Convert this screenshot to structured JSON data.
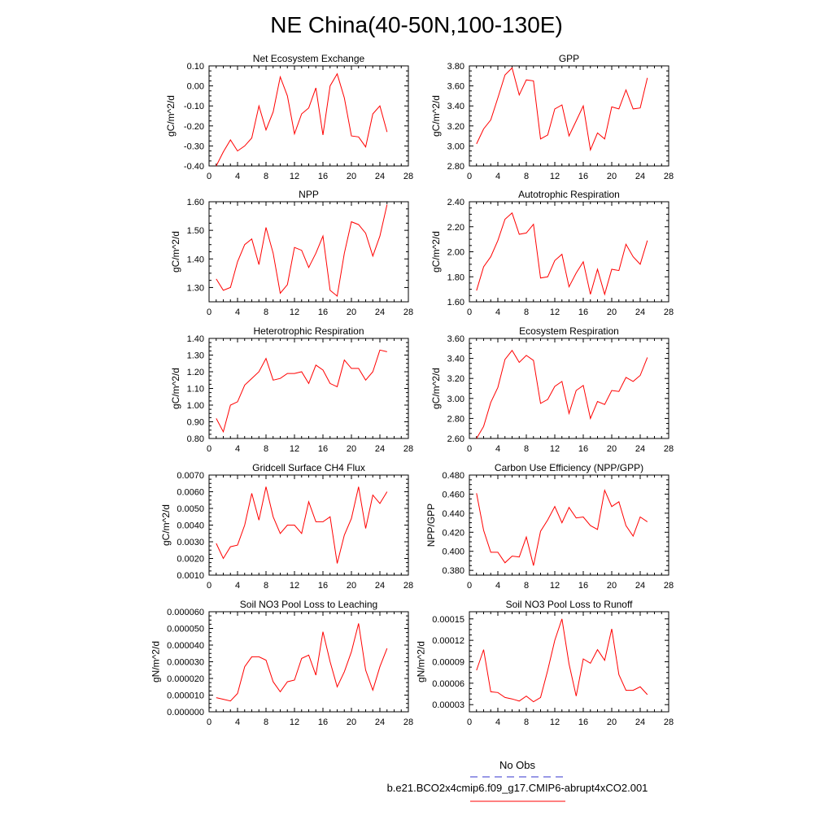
{
  "title": "NE China(40-50N,100-130E)",
  "colors": {
    "series_line": "#ff0000",
    "obs_line": "#3333cc",
    "axis": "#000000"
  },
  "legend": {
    "entries": [
      {
        "label": "No Obs",
        "style": "dashed",
        "color": "#3333cc"
      },
      {
        "label": "b.e21.BCO2x4cmip6.f09_g17.CMIP6-abrupt4xCO2.001",
        "style": "solid",
        "color": "#ff0000"
      }
    ]
  },
  "chart_data": [
    {
      "type": "line",
      "title": "Net Ecosystem Exchange",
      "ylabel": "gC/m^2/d",
      "xlim": [
        0,
        28
      ],
      "xticks": [
        "0",
        "4",
        "8",
        "12",
        "16",
        "20",
        "24",
        "28"
      ],
      "ylim": [
        -0.4,
        0.1
      ],
      "yticks": [
        "-0.40",
        "-0.30",
        "-0.20",
        "-0.10",
        "0.00",
        "0.10"
      ],
      "x": [
        1,
        2,
        3,
        4,
        5,
        6,
        7,
        8,
        9,
        10,
        11,
        12,
        13,
        14,
        15,
        16,
        17,
        18,
        19,
        20,
        21,
        22,
        23,
        24,
        25
      ],
      "values": [
        -0.4,
        -0.33,
        -0.27,
        -0.325,
        -0.3,
        -0.26,
        -0.1,
        -0.22,
        -0.13,
        0.045,
        -0.05,
        -0.24,
        -0.14,
        -0.11,
        -0.01,
        -0.245,
        0.0,
        0.06,
        -0.06,
        -0.25,
        -0.255,
        -0.305,
        -0.14,
        -0.1,
        -0.23
      ]
    },
    {
      "type": "line",
      "title": "GPP",
      "ylabel": "gC/m^2/d",
      "xlim": [
        0,
        28
      ],
      "xticks": [
        "0",
        "4",
        "8",
        "12",
        "16",
        "20",
        "24",
        "28"
      ],
      "ylim": [
        2.8,
        3.8
      ],
      "yticks": [
        "2.80",
        "3.00",
        "3.20",
        "3.40",
        "3.60",
        "3.80"
      ],
      "x": [
        1,
        2,
        3,
        4,
        5,
        6,
        7,
        8,
        9,
        10,
        11,
        12,
        13,
        14,
        15,
        16,
        17,
        18,
        19,
        20,
        21,
        22,
        23,
        24,
        25
      ],
      "values": [
        3.02,
        3.17,
        3.26,
        3.48,
        3.71,
        3.78,
        3.51,
        3.66,
        3.65,
        3.07,
        3.11,
        3.37,
        3.41,
        3.1,
        3.25,
        3.4,
        2.96,
        3.13,
        3.07,
        3.39,
        3.37,
        3.56,
        3.37,
        3.38,
        3.68
      ]
    },
    {
      "type": "line",
      "title": "NPP",
      "ylabel": "gC/m^2/d",
      "xlim": [
        0,
        28
      ],
      "xticks": [
        "0",
        "4",
        "8",
        "12",
        "16",
        "20",
        "24",
        "28"
      ],
      "ylim": [
        1.25,
        1.6
      ],
      "yticks": [
        "1.30",
        "1.40",
        "1.50",
        "1.60"
      ],
      "x": [
        1,
        2,
        3,
        4,
        5,
        6,
        7,
        8,
        9,
        10,
        11,
        12,
        13,
        14,
        15,
        16,
        17,
        18,
        19,
        20,
        21,
        22,
        23,
        24,
        25
      ],
      "values": [
        1.33,
        1.29,
        1.3,
        1.39,
        1.45,
        1.47,
        1.38,
        1.51,
        1.42,
        1.28,
        1.31,
        1.44,
        1.43,
        1.37,
        1.42,
        1.48,
        1.29,
        1.27,
        1.42,
        1.53,
        1.52,
        1.49,
        1.41,
        1.48,
        1.59
      ]
    },
    {
      "type": "line",
      "title": "Autotrophic Respiration",
      "ylabel": "gC/m^2/d",
      "xlim": [
        0,
        28
      ],
      "xticks": [
        "0",
        "4",
        "8",
        "12",
        "16",
        "20",
        "24",
        "28"
      ],
      "ylim": [
        1.6,
        2.4
      ],
      "yticks": [
        "1.60",
        "1.80",
        "2.00",
        "2.20",
        "2.40"
      ],
      "x": [
        1,
        2,
        3,
        4,
        5,
        6,
        7,
        8,
        9,
        10,
        11,
        12,
        13,
        14,
        15,
        16,
        17,
        18,
        19,
        20,
        21,
        22,
        23,
        24,
        25
      ],
      "values": [
        1.69,
        1.88,
        1.96,
        2.09,
        2.26,
        2.31,
        2.14,
        2.15,
        2.22,
        1.79,
        1.8,
        1.93,
        1.98,
        1.72,
        1.83,
        1.92,
        1.66,
        1.86,
        1.66,
        1.86,
        1.85,
        2.06,
        1.96,
        1.9,
        2.09
      ]
    },
    {
      "type": "line",
      "title": "Heterotrophic Respiration",
      "ylabel": "gC/m^2/d",
      "xlim": [
        0,
        28
      ],
      "xticks": [
        "0",
        "4",
        "8",
        "12",
        "16",
        "20",
        "24",
        "28"
      ],
      "ylim": [
        0.8,
        1.4
      ],
      "yticks": [
        "0.80",
        "0.90",
        "1.00",
        "1.10",
        "1.20",
        "1.30",
        "1.40"
      ],
      "x": [
        1,
        2,
        3,
        4,
        5,
        6,
        7,
        8,
        9,
        10,
        11,
        12,
        13,
        14,
        15,
        16,
        17,
        18,
        19,
        20,
        21,
        22,
        23,
        24,
        25
      ],
      "values": [
        0.92,
        0.84,
        1.0,
        1.02,
        1.12,
        1.16,
        1.2,
        1.28,
        1.15,
        1.16,
        1.19,
        1.19,
        1.2,
        1.13,
        1.24,
        1.21,
        1.13,
        1.11,
        1.27,
        1.22,
        1.22,
        1.15,
        1.2,
        1.33,
        1.32
      ]
    },
    {
      "type": "line",
      "title": "Ecosystem Respiration",
      "ylabel": "gC/m^2/d",
      "xlim": [
        0,
        28
      ],
      "xticks": [
        "0",
        "4",
        "8",
        "12",
        "16",
        "20",
        "24",
        "28"
      ],
      "ylim": [
        2.6,
        3.6
      ],
      "yticks": [
        "2.60",
        "2.80",
        "3.00",
        "3.20",
        "3.40",
        "3.60"
      ],
      "x": [
        1,
        2,
        3,
        4,
        5,
        6,
        7,
        8,
        9,
        10,
        11,
        12,
        13,
        14,
        15,
        16,
        17,
        18,
        19,
        20,
        21,
        22,
        23,
        24,
        25
      ],
      "values": [
        2.6,
        2.72,
        2.96,
        3.11,
        3.39,
        3.48,
        3.36,
        3.43,
        3.38,
        2.95,
        2.99,
        3.12,
        3.17,
        2.85,
        3.08,
        3.13,
        2.8,
        2.97,
        2.94,
        3.08,
        3.07,
        3.21,
        3.17,
        3.23,
        3.41
      ]
    },
    {
      "type": "line",
      "title": "Gridcell Surface CH4 Flux",
      "ylabel": "gC/m^2/d",
      "xlim": [
        0,
        28
      ],
      "xticks": [
        "0",
        "4",
        "8",
        "12",
        "16",
        "20",
        "24",
        "28"
      ],
      "ylim": [
        0.001,
        0.007
      ],
      "yticks": [
        "0.0010",
        "0.0020",
        "0.0030",
        "0.0040",
        "0.0050",
        "0.0060",
        "0.0070"
      ],
      "x": [
        1,
        2,
        3,
        4,
        5,
        6,
        7,
        8,
        9,
        10,
        11,
        12,
        13,
        14,
        15,
        16,
        17,
        18,
        19,
        20,
        21,
        22,
        23,
        24,
        25
      ],
      "values": [
        0.0029,
        0.002,
        0.0027,
        0.0028,
        0.004,
        0.0059,
        0.0043,
        0.0063,
        0.0045,
        0.0035,
        0.004,
        0.004,
        0.0035,
        0.0054,
        0.0042,
        0.0042,
        0.0045,
        0.0017,
        0.0034,
        0.0044,
        0.0063,
        0.0038,
        0.0058,
        0.0053,
        0.006
      ]
    },
    {
      "type": "line",
      "title": "Carbon Use Efficiency (NPP/GPP)",
      "ylabel": "NPP/GPP",
      "xlim": [
        0,
        28
      ],
      "xticks": [
        "0",
        "4",
        "8",
        "12",
        "16",
        "20",
        "24",
        "28"
      ],
      "ylim": [
        0.375,
        0.48
      ],
      "yticks": [
        "0.380",
        "0.400",
        "0.420",
        "0.440",
        "0.460",
        "0.480"
      ],
      "x": [
        1,
        2,
        3,
        4,
        5,
        6,
        7,
        8,
        9,
        10,
        11,
        12,
        13,
        14,
        15,
        16,
        17,
        18,
        19,
        20,
        21,
        22,
        23,
        24,
        25
      ],
      "values": [
        0.461,
        0.422,
        0.399,
        0.399,
        0.388,
        0.395,
        0.394,
        0.415,
        0.385,
        0.421,
        0.433,
        0.447,
        0.43,
        0.446,
        0.435,
        0.436,
        0.427,
        0.423,
        0.464,
        0.447,
        0.452,
        0.427,
        0.416,
        0.436,
        0.431
      ]
    },
    {
      "type": "line",
      "title": "Soil NO3 Pool Loss to Leaching",
      "ylabel": "gN/m^2/d",
      "xlim": [
        0,
        28
      ],
      "xticks": [
        "0",
        "4",
        "8",
        "12",
        "16",
        "20",
        "24",
        "28"
      ],
      "ylim": [
        0,
        6e-05
      ],
      "yticks": [
        "0.000000",
        "0.000010",
        "0.000020",
        "0.000030",
        "0.000040",
        "0.000050",
        "0.000060"
      ],
      "x": [
        1,
        2,
        3,
        4,
        5,
        6,
        7,
        8,
        9,
        10,
        11,
        12,
        13,
        14,
        15,
        16,
        17,
        18,
        19,
        20,
        21,
        22,
        23,
        24,
        25
      ],
      "values": [
        8.5e-06,
        7.5e-06,
        6.5e-06,
        1.1e-05,
        2.7e-05,
        3.3e-05,
        3.3e-05,
        3.1e-05,
        1.8e-05,
        1.2e-05,
        1.8e-05,
        1.9e-05,
        3.2e-05,
        3.4e-05,
        2.2e-05,
        4.8e-05,
        3e-05,
        1.5e-05,
        2.4e-05,
        3.6e-05,
        5.3e-05,
        2.5e-05,
        1.3e-05,
        2.7e-05,
        3.8e-05
      ]
    },
    {
      "type": "line",
      "title": "Soil NO3 Pool Loss to Runoff",
      "ylabel": "gN/m^2/d",
      "xlim": [
        0,
        28
      ],
      "xticks": [
        "0",
        "4",
        "8",
        "12",
        "16",
        "20",
        "24",
        "28"
      ],
      "ylim": [
        2e-05,
        0.00016
      ],
      "yticks": [
        "0.00003",
        "0.00006",
        "0.00009",
        "0.00012",
        "0.00015"
      ],
      "x": [
        1,
        2,
        3,
        4,
        5,
        6,
        7,
        8,
        9,
        10,
        11,
        12,
        13,
        14,
        15,
        16,
        17,
        18,
        19,
        20,
        21,
        22,
        23,
        24,
        25
      ],
      "values": [
        7.8e-05,
        0.000107,
        4.8e-05,
        4.7e-05,
        4e-05,
        3.8e-05,
        3.5e-05,
        4.2e-05,
        3.4e-05,
        4e-05,
        7.8e-05,
        0.00012,
        0.00015,
        8.7e-05,
        4.2e-05,
        9.4e-05,
        8.8e-05,
        0.000107,
        9.2e-05,
        0.000136,
        7.2e-05,
        5e-05,
        5e-05,
        5.5e-05,
        4.4e-05
      ]
    }
  ]
}
